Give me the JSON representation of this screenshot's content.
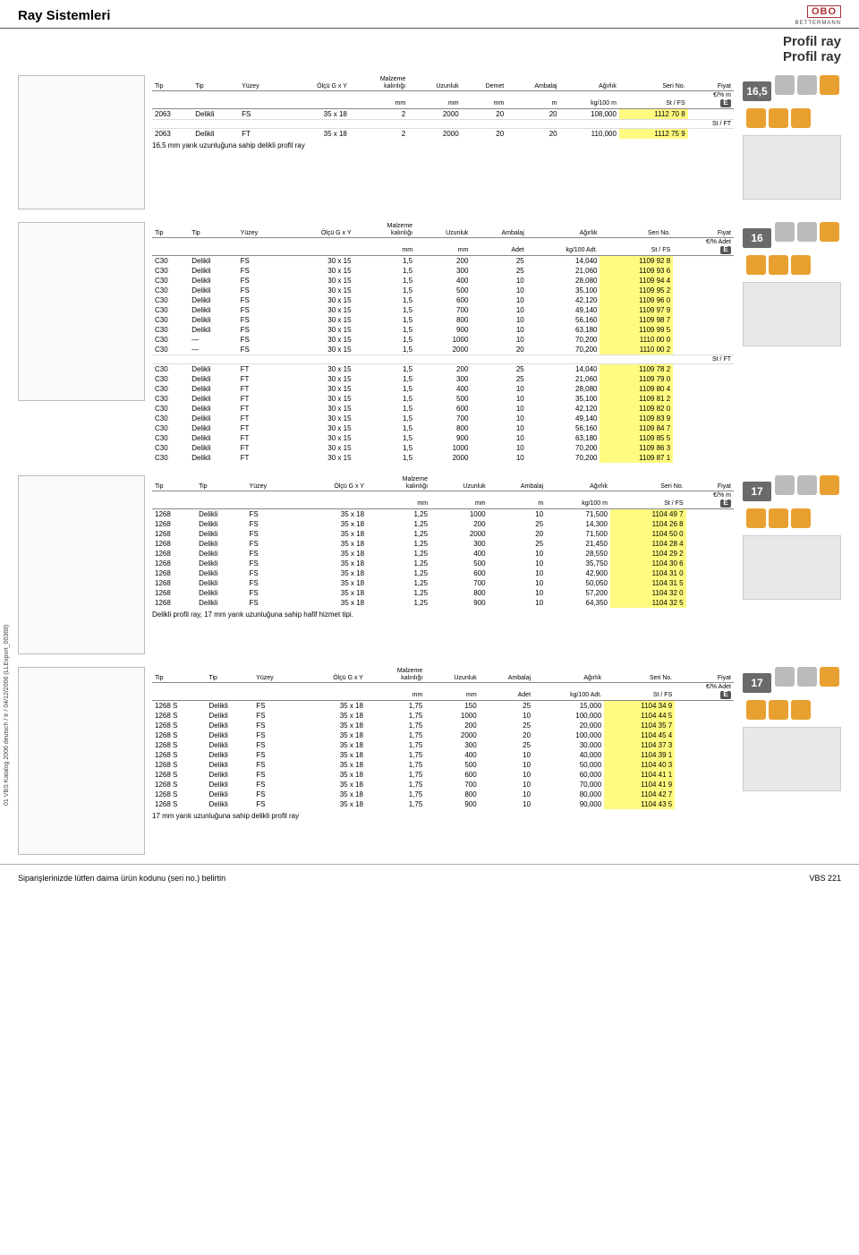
{
  "header": {
    "title": "Ray Sistemleri",
    "logo_top": "OBO",
    "logo_bot": "BETTERMANN"
  },
  "subtitles": [
    "Profil ray",
    "Profil ray"
  ],
  "columns": {
    "tip": "Tip",
    "tip2": "Tip",
    "yuzey": "Yüzey",
    "olcu": "Ölçü G x Y",
    "malzeme": "Malzeme\nkalınlığı",
    "uzunluk": "Uzunluk",
    "demet": "Demet",
    "ambalaj": "Ambalaj",
    "agirlik": "Ağırlık",
    "seri": "Seri No.",
    "fiyat": "Fiyat"
  },
  "units": {
    "mm": "mm",
    "m": "m",
    "kg100m": "kg/100 m",
    "kg100adt": "kg/100 Adt.",
    "st_fs": "St / FS",
    "st_ft": "St / FT",
    "adet": "Adet",
    "fiyat_m": "€/% m",
    "fiyat_adet": "€/% Adet",
    "e_mark": "E"
  },
  "sections": [
    {
      "gauge": "16,5",
      "fiyat_unit": "€/% m",
      "agirlik_unit": "kg/100 m",
      "ambalaj_unit": "m",
      "has_demet": true,
      "caption": "16,5 mm yarık uzunluğuna sahip delikli profil ray",
      "diagram_h": 150,
      "groups": [
        {
          "mat": "St / FS",
          "rows": [
            {
              "c": [
                "2063",
                "Delikli",
                "FS",
                "35 x 18",
                "2",
                "2000",
                "20",
                "20",
                "108,000",
                "1112 70 8"
              ]
            }
          ]
        },
        {
          "mat": "St / FT",
          "rows": [
            {
              "c": [
                "2063",
                "Delikli",
                "FT",
                "35 x 18",
                "2",
                "2000",
                "20",
                "20",
                "110,000",
                "1112 75 9"
              ]
            }
          ]
        }
      ]
    },
    {
      "gauge": "16",
      "fiyat_unit": "€/% Adet",
      "agirlik_unit": "kg/100 Adt.",
      "ambalaj_unit": "Adet",
      "has_demet": false,
      "caption": "",
      "diagram_h": 200,
      "groups": [
        {
          "mat": "St / FS",
          "rows": [
            {
              "c": [
                "C30",
                "Delikli",
                "FS",
                "30 x 15",
                "1,5",
                "200",
                "25",
                "14,040",
                "1109 92 8"
              ]
            },
            {
              "c": [
                "C30",
                "Delikli",
                "FS",
                "30 x 15",
                "1,5",
                "300",
                "25",
                "21,060",
                "1109 93 6"
              ]
            },
            {
              "c": [
                "C30",
                "Delikli",
                "FS",
                "30 x 15",
                "1,5",
                "400",
                "10",
                "28,080",
                "1109 94 4"
              ]
            },
            {
              "c": [
                "C30",
                "Delikli",
                "FS",
                "30 x 15",
                "1,5",
                "500",
                "10",
                "35,100",
                "1109 95 2"
              ]
            },
            {
              "c": [
                "C30",
                "Delikli",
                "FS",
                "30 x 15",
                "1,5",
                "600",
                "10",
                "42,120",
                "1109 96 0"
              ]
            },
            {
              "c": [
                "C30",
                "Delikli",
                "FS",
                "30 x 15",
                "1,5",
                "700",
                "10",
                "49,140",
                "1109 97 9"
              ]
            },
            {
              "c": [
                "C30",
                "Delikli",
                "FS",
                "30 x 15",
                "1,5",
                "800",
                "10",
                "56,160",
                "1109 98 7"
              ]
            },
            {
              "c": [
                "C30",
                "Delikli",
                "FS",
                "30 x 15",
                "1,5",
                "900",
                "10",
                "63,180",
                "1109 99 5"
              ]
            },
            {
              "c": [
                "C30",
                "—",
                "FS",
                "30 x 15",
                "1,5",
                "1000",
                "10",
                "70,200",
                "1110 00 0"
              ]
            },
            {
              "c": [
                "C30",
                "—",
                "FS",
                "30 x 15",
                "1,5",
                "2000",
                "20",
                "70,200",
                "1110 00 2"
              ]
            }
          ]
        },
        {
          "mat": "St / FT",
          "rows": [
            {
              "c": [
                "C30",
                "Delikli",
                "FT",
                "30 x 15",
                "1,5",
                "200",
                "25",
                "14,040",
                "1109 78 2"
              ]
            },
            {
              "c": [
                "C30",
                "Delikli",
                "FT",
                "30 x 15",
                "1,5",
                "300",
                "25",
                "21,060",
                "1109 79 0"
              ]
            },
            {
              "c": [
                "C30",
                "Delikli",
                "FT",
                "30 x 15",
                "1,5",
                "400",
                "10",
                "28,080",
                "1109 80 4"
              ]
            },
            {
              "c": [
                "C30",
                "Delikli",
                "FT",
                "30 x 15",
                "1,5",
                "500",
                "10",
                "35,100",
                "1109 81 2"
              ]
            },
            {
              "c": [
                "C30",
                "Delikli",
                "FT",
                "30 x 15",
                "1,5",
                "600",
                "10",
                "42,120",
                "1109 82 0"
              ]
            },
            {
              "c": [
                "C30",
                "Delikli",
                "FT",
                "30 x 15",
                "1,5",
                "700",
                "10",
                "49,140",
                "1109 83 9"
              ]
            },
            {
              "c": [
                "C30",
                "Delikli",
                "FT",
                "30 x 15",
                "1,5",
                "800",
                "10",
                "56,160",
                "1109 84 7"
              ]
            },
            {
              "c": [
                "C30",
                "Delikli",
                "FT",
                "30 x 15",
                "1,5",
                "900",
                "10",
                "63,180",
                "1109 85 5"
              ]
            },
            {
              "c": [
                "C30",
                "Delikli",
                "FT",
                "30 x 15",
                "1,5",
                "1000",
                "10",
                "70,200",
                "1109 86 3"
              ]
            },
            {
              "c": [
                "C30",
                "Delikli",
                "FT",
                "30 x 15",
                "1,5",
                "2000",
                "10",
                "70,200",
                "1109 87 1"
              ]
            }
          ]
        }
      ]
    },
    {
      "gauge": "17",
      "fiyat_unit": "€/% m",
      "agirlik_unit": "kg/100 m",
      "ambalaj_unit": "m",
      "has_demet": false,
      "caption": "Delikli profil ray, 17 mm yarık uzunluğuna sahip hafif hizmet tipi.",
      "diagram_h": 200,
      "groups": [
        {
          "mat": "St / FS",
          "rows": [
            {
              "c": [
                "1268",
                "Delikli",
                "FS",
                "35 x 18",
                "1,25",
                "1000",
                "10",
                "71,500",
                "1104 49 7"
              ]
            },
            {
              "c": [
                "1268",
                "Delikli",
                "FS",
                "35 x 18",
                "1,25",
                "200",
                "25",
                "14,300",
                "1104 26 8"
              ]
            },
            {
              "c": [
                "1268",
                "Delikli",
                "FS",
                "35 x 18",
                "1,25",
                "2000",
                "20",
                "71,500",
                "1104 50 0"
              ]
            },
            {
              "c": [
                "1268",
                "Delikli",
                "FS",
                "35 x 18",
                "1,25",
                "300",
                "25",
                "21,450",
                "1104 28 4"
              ]
            },
            {
              "c": [
                "1268",
                "Delikli",
                "FS",
                "35 x 18",
                "1,25",
                "400",
                "10",
                "28,550",
                "1104 29 2"
              ]
            },
            {
              "c": [
                "1268",
                "Delikli",
                "FS",
                "35 x 18",
                "1,25",
                "500",
                "10",
                "35,750",
                "1104 30 6"
              ]
            },
            {
              "c": [
                "1268",
                "Delikli",
                "FS",
                "35 x 18",
                "1,25",
                "600",
                "10",
                "42,900",
                "1104 31 0"
              ]
            },
            {
              "c": [
                "1268",
                "Delikli",
                "FS",
                "35 x 18",
                "1,25",
                "700",
                "10",
                "50,050",
                "1104 31 5"
              ]
            },
            {
              "c": [
                "1268",
                "Delikli",
                "FS",
                "35 x 18",
                "1,25",
                "800",
                "10",
                "57,200",
                "1104 32 0"
              ]
            },
            {
              "c": [
                "1268",
                "Delikli",
                "FS",
                "35 x 18",
                "1,25",
                "900",
                "10",
                "64,350",
                "1104 32 5"
              ]
            }
          ]
        }
      ]
    },
    {
      "gauge": "17",
      "fiyat_unit": "€/% Adet",
      "agirlik_unit": "kg/100 Adt.",
      "ambalaj_unit": "Adet",
      "has_demet": false,
      "caption": "17 mm yarık uzunluğuna sahip delikli profil ray",
      "diagram_h": 210,
      "groups": [
        {
          "mat": "St / FS",
          "rows": [
            {
              "c": [
                "1268 S",
                "Delikli",
                "FS",
                "35 x 18",
                "1,75",
                "150",
                "25",
                "15,000",
                "1104 34 9"
              ]
            },
            {
              "c": [
                "1268 S",
                "Delikli",
                "FS",
                "35 x 18",
                "1,75",
                "1000",
                "10",
                "100,000",
                "1104 44 5"
              ]
            },
            {
              "c": [
                "1268 S",
                "Delikli",
                "FS",
                "35 x 18",
                "1,75",
                "200",
                "25",
                "20,000",
                "1104 35 7"
              ]
            },
            {
              "c": [
                "1268 S",
                "Delikli",
                "FS",
                "35 x 18",
                "1,75",
                "2000",
                "20",
                "100,000",
                "1104 45 4"
              ]
            },
            {
              "c": [
                "1268 S",
                "Delikli",
                "FS",
                "35 x 18",
                "1,75",
                "300",
                "25",
                "30,000",
                "1104 37 3"
              ]
            },
            {
              "c": [
                "1268 S",
                "Delikli",
                "FS",
                "35 x 18",
                "1,75",
                "400",
                "10",
                "40,000",
                "1104 39 1"
              ]
            },
            {
              "c": [
                "1268 S",
                "Delikli",
                "FS",
                "35 x 18",
                "1,75",
                "500",
                "10",
                "50,000",
                "1104 40 3"
              ]
            },
            {
              "c": [
                "1268 S",
                "Delikli",
                "FS",
                "35 x 18",
                "1,75",
                "600",
                "10",
                "60,000",
                "1104 41 1"
              ]
            },
            {
              "c": [
                "1268 S",
                "Delikli",
                "FS",
                "35 x 18",
                "1,75",
                "700",
                "10",
                "70,000",
                "1104 41 9"
              ]
            },
            {
              "c": [
                "1268 S",
                "Delikli",
                "FS",
                "35 x 18",
                "1,75",
                "800",
                "10",
                "80,000",
                "1104 42 7"
              ]
            },
            {
              "c": [
                "1268 S",
                "Delikli",
                "FS",
                "35 x 18",
                "1,75",
                "900",
                "10",
                "90,000",
                "1104 43 5"
              ]
            }
          ]
        }
      ]
    }
  ],
  "footer": {
    "left": "Siparişlerinizde lütfen daima ürün kodunu (seri no.) belirtin",
    "right": "VBS 221"
  },
  "sideprint": "01 VBS Katalog 2006 deutsch / tr / 04/12/2006 (LLExport_00368)"
}
